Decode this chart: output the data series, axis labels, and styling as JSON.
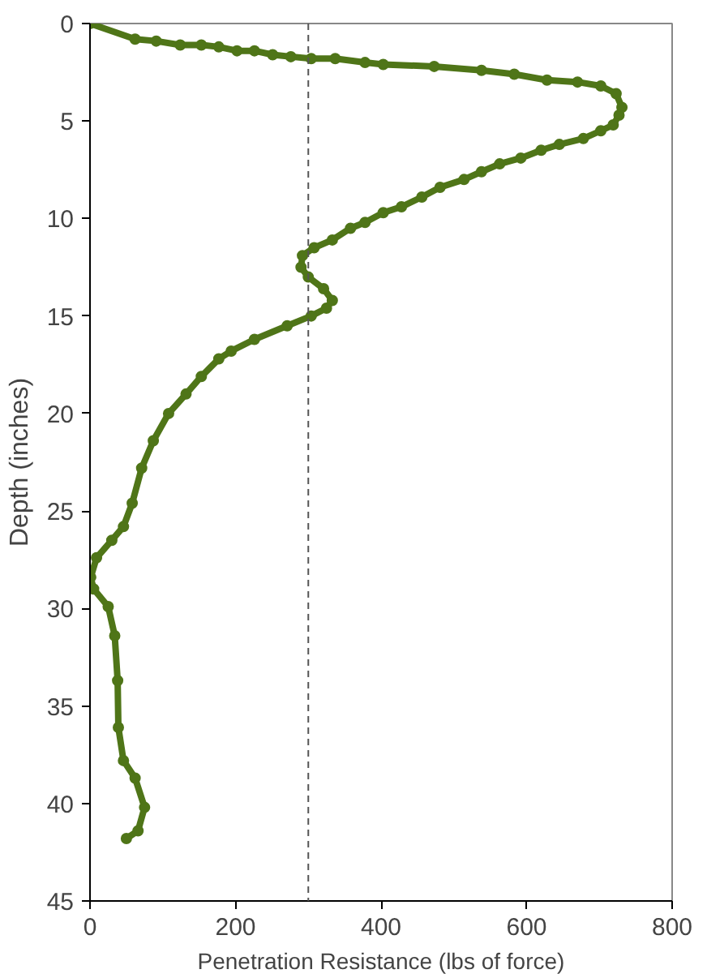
{
  "chart_data": {
    "type": "line",
    "xlabel": "Penetration Resistance (lbs of force)",
    "ylabel": "Depth (inches)",
    "xlim": [
      0,
      800
    ],
    "xticks": [
      0,
      200,
      400,
      600,
      800
    ],
    "ylim": [
      45,
      0
    ],
    "yticks": [
      0,
      5,
      10,
      15,
      20,
      25,
      30,
      35,
      40,
      45
    ],
    "marker": "circle",
    "line_style": "solid",
    "grid": false,
    "ref_lines": [
      {
        "axis": "x",
        "value": 300,
        "line_style": "dashed",
        "color": "#555555"
      }
    ],
    "series": [
      {
        "color": "#4f7518",
        "x": [
          0,
          62,
          91,
          124,
          153,
          177,
          202,
          226,
          251,
          276,
          304,
          337,
          378,
          403,
          473,
          538,
          583,
          628,
          670,
          702,
          723,
          731,
          727,
          719,
          702,
          678,
          645,
          620,
          592,
          563,
          538,
          514,
          481,
          456,
          428,
          403,
          378,
          358,
          333,
          308,
          292,
          290,
          300,
          321,
          333,
          325,
          304,
          271,
          226,
          194,
          177,
          153,
          132,
          108,
          87,
          71,
          58,
          46,
          30,
          9,
          1,
          5,
          25,
          34,
          38,
          39,
          46,
          62,
          75,
          66,
          50
        ],
        "values": [
          0,
          0.8,
          0.9,
          1.1,
          1.1,
          1.2,
          1.4,
          1.4,
          1.6,
          1.7,
          1.8,
          1.8,
          2.0,
          2.1,
          2.2,
          2.4,
          2.6,
          2.9,
          3.0,
          3.2,
          3.6,
          4.3,
          4.7,
          5.2,
          5.5,
          5.9,
          6.2,
          6.5,
          6.9,
          7.2,
          7.6,
          8.0,
          8.4,
          8.9,
          9.4,
          9.7,
          10.2,
          10.5,
          11.1,
          11.5,
          11.9,
          12.5,
          13.0,
          13.6,
          14.2,
          14.6,
          15.0,
          15.5,
          16.2,
          16.8,
          17.2,
          18.1,
          19.0,
          20.0,
          21.4,
          22.8,
          24.6,
          25.8,
          26.5,
          27.4,
          28.4,
          29.0,
          29.9,
          31.4,
          33.7,
          36.1,
          37.8,
          38.7,
          40.2,
          41.4,
          41.8
        ]
      }
    ]
  }
}
